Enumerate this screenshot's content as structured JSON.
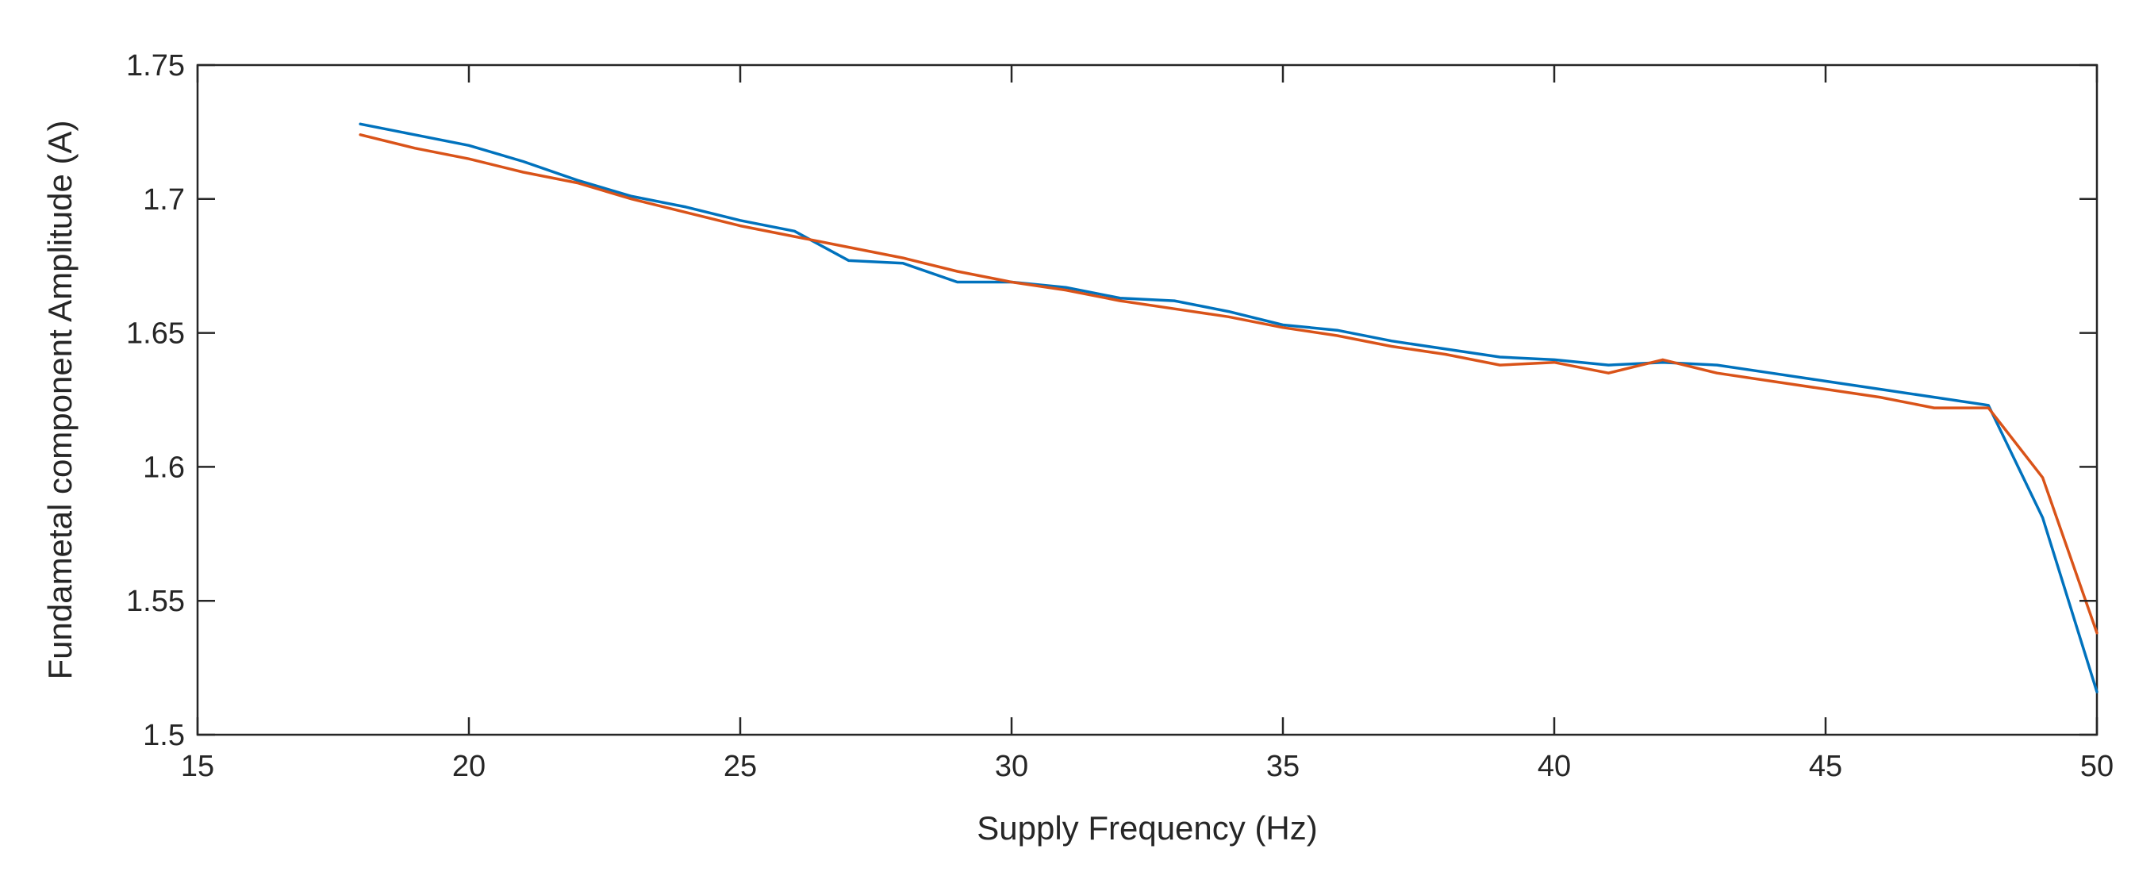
{
  "chart_data": {
    "type": "line",
    "title": "",
    "xlabel": "Supply Frequency (Hz)",
    "ylabel": "Fundametal component Amplitude (A)",
    "xlim": [
      15,
      50
    ],
    "ylim": [
      1.5,
      1.75
    ],
    "xticks": [
      15,
      20,
      25,
      30,
      35,
      40,
      45,
      50
    ],
    "yticks": [
      1.5,
      1.55,
      1.6,
      1.65,
      1.7,
      1.75
    ],
    "xtick_labels": [
      "15",
      "20",
      "25",
      "30",
      "35",
      "40",
      "45",
      "50"
    ],
    "ytick_labels": [
      "1.5",
      "1.55",
      "1.6",
      "1.65",
      "1.7",
      "1.75"
    ],
    "grid": false,
    "box": true,
    "x": [
      18,
      19,
      20,
      21,
      22,
      23,
      24,
      25,
      26,
      27,
      28,
      29,
      30,
      31,
      32,
      33,
      34,
      35,
      36,
      37,
      38,
      39,
      40,
      41,
      42,
      43,
      44,
      45,
      46,
      47,
      48,
      49,
      50
    ],
    "series": [
      {
        "color": "#0072BD",
        "values": [
          1.728,
          1.724,
          1.72,
          1.714,
          1.707,
          1.701,
          1.697,
          1.692,
          1.688,
          1.677,
          1.676,
          1.669,
          1.669,
          1.667,
          1.663,
          1.662,
          1.658,
          1.653,
          1.651,
          1.647,
          1.644,
          1.641,
          1.64,
          1.638,
          1.639,
          1.638,
          1.635,
          1.632,
          1.629,
          1.626,
          1.623,
          1.581,
          1.516
        ]
      },
      {
        "color": "#D95319",
        "values": [
          1.724,
          1.719,
          1.715,
          1.71,
          1.706,
          1.7,
          1.695,
          1.69,
          1.686,
          1.682,
          1.678,
          1.673,
          1.669,
          1.666,
          1.662,
          1.659,
          1.656,
          1.652,
          1.649,
          1.645,
          1.642,
          1.638,
          1.639,
          1.635,
          1.64,
          1.635,
          1.632,
          1.629,
          1.626,
          1.622,
          1.622,
          1.596,
          1.538
        ]
      }
    ]
  }
}
